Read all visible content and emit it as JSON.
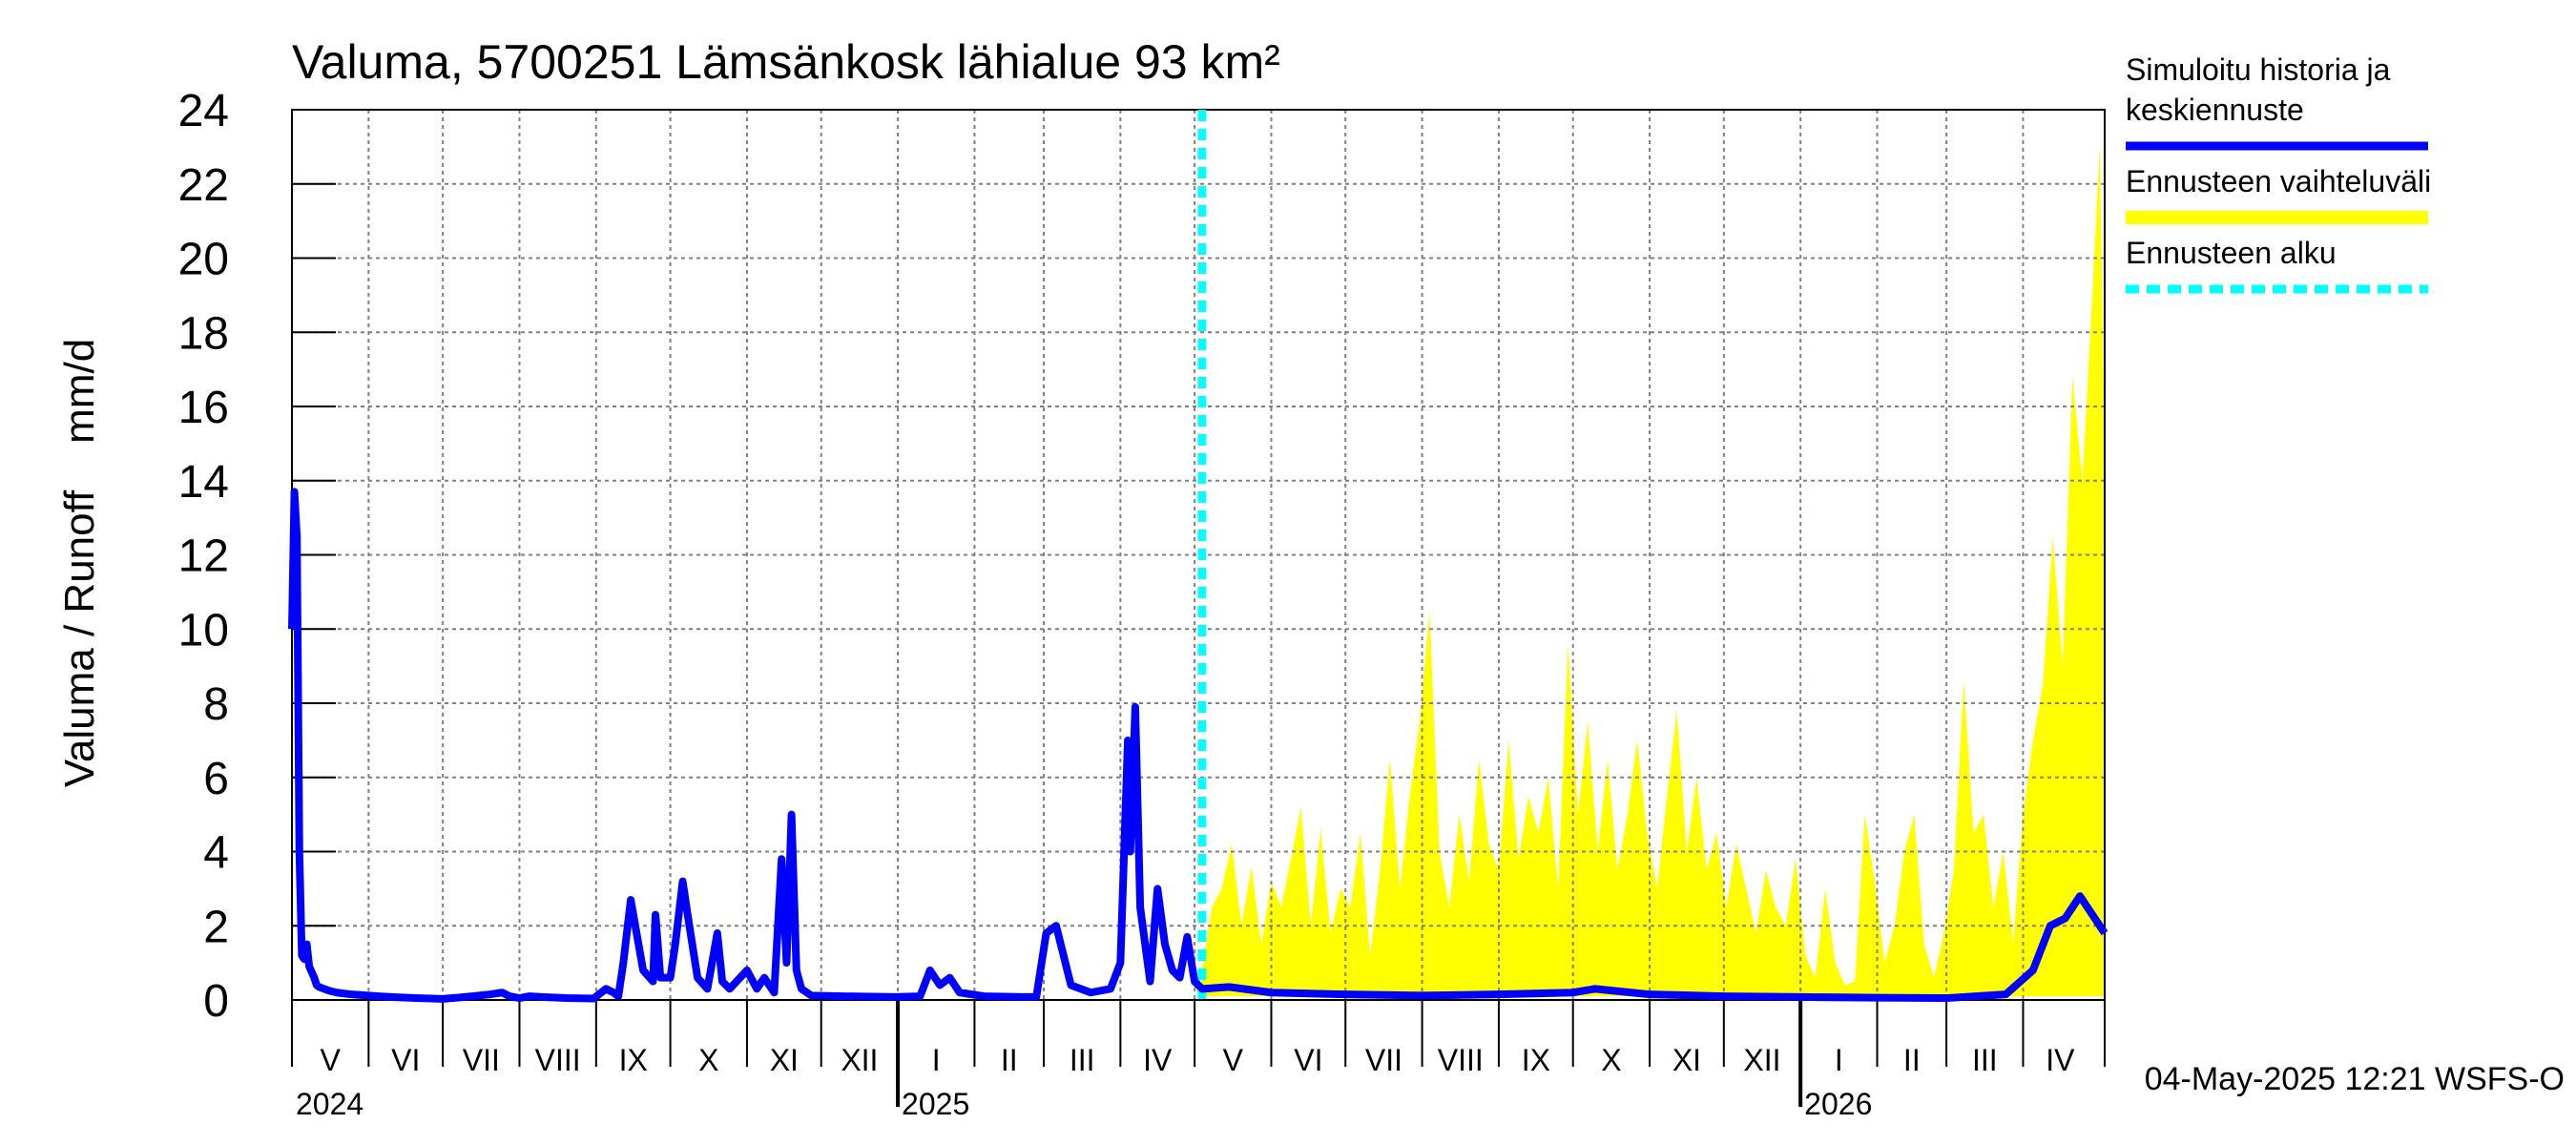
{
  "title": "Valuma, 5700251 Lämsänkosk lähialue 93 km²",
  "ylabel": "Valuma / Runoff    mm/d",
  "timestamp": "04-May-2025 12:21 WSFS-O",
  "colors": {
    "history": "#0000ff",
    "range": "#ffff00",
    "forecast_start": "#00ffff",
    "grid": "#808080"
  },
  "legend": {
    "items": [
      {
        "label_lines": [
          "Simuloitu historia ja",
          "keskiennuste"
        ],
        "style": "line",
        "color": "#0000ff"
      },
      {
        "label_lines": [
          "Ennusteen vaihteluväli"
        ],
        "style": "band",
        "color": "#ffff00"
      },
      {
        "label_lines": [
          "Ennusteen alku"
        ],
        "style": "dashed",
        "color": "#00ffff"
      }
    ]
  },
  "chart_data": {
    "type": "line",
    "x_type": "date",
    "xlim": [
      "2024-05-01",
      "2026-05-04"
    ],
    "ylim": [
      0,
      24
    ],
    "yticks": [
      0,
      2,
      4,
      6,
      8,
      10,
      12,
      14,
      16,
      18,
      20,
      22,
      24
    ],
    "grid": true,
    "legend_position": "right",
    "month_labels": [
      {
        "label": "V",
        "start": "2024-05-01",
        "end": "2024-06-01"
      },
      {
        "label": "VI",
        "start": "2024-06-01",
        "end": "2024-07-01"
      },
      {
        "label": "VII",
        "start": "2024-07-01",
        "end": "2024-08-01"
      },
      {
        "label": "VIII",
        "start": "2024-08-01",
        "end": "2024-09-01"
      },
      {
        "label": "IX",
        "start": "2024-09-01",
        "end": "2024-10-01"
      },
      {
        "label": "X",
        "start": "2024-10-01",
        "end": "2024-11-01"
      },
      {
        "label": "XI",
        "start": "2024-11-01",
        "end": "2024-12-01"
      },
      {
        "label": "XII",
        "start": "2024-12-01",
        "end": "2025-01-01"
      },
      {
        "label": "I",
        "start": "2025-01-01",
        "end": "2025-02-01"
      },
      {
        "label": "II",
        "start": "2025-02-01",
        "end": "2025-03-01"
      },
      {
        "label": "III",
        "start": "2025-03-01",
        "end": "2025-04-01"
      },
      {
        "label": "IV",
        "start": "2025-04-01",
        "end": "2025-05-01"
      },
      {
        "label": "V",
        "start": "2025-05-01",
        "end": "2025-06-01"
      },
      {
        "label": "VI",
        "start": "2025-06-01",
        "end": "2025-07-01"
      },
      {
        "label": "VII",
        "start": "2025-07-01",
        "end": "2025-08-01"
      },
      {
        "label": "VIII",
        "start": "2025-08-01",
        "end": "2025-09-01"
      },
      {
        "label": "IX",
        "start": "2025-09-01",
        "end": "2025-10-01"
      },
      {
        "label": "X",
        "start": "2025-10-01",
        "end": "2025-11-01"
      },
      {
        "label": "XI",
        "start": "2025-11-01",
        "end": "2025-12-01"
      },
      {
        "label": "XII",
        "start": "2025-12-01",
        "end": "2026-01-01"
      },
      {
        "label": "I",
        "start": "2026-01-01",
        "end": "2026-02-01"
      },
      {
        "label": "II",
        "start": "2026-02-01",
        "end": "2026-03-01"
      },
      {
        "label": "III",
        "start": "2026-03-01",
        "end": "2026-04-01"
      },
      {
        "label": "IV",
        "start": "2026-04-01",
        "end": "2026-05-01"
      }
    ],
    "year_labels": [
      {
        "label": "2024",
        "date": "2024-05-01"
      },
      {
        "label": "2025",
        "date": "2025-01-01"
      },
      {
        "label": "2026",
        "date": "2026-01-01"
      }
    ],
    "forecast_start": "2025-05-04",
    "series": [
      {
        "name": "Simuloitu historia ja keskiennuste",
        "x": [
          "2024-05-01",
          "2024-05-02",
          "2024-05-03",
          "2024-05-04",
          "2024-05-05",
          "2024-05-06",
          "2024-05-07",
          "2024-05-08",
          "2024-05-10",
          "2024-05-11",
          "2024-05-12",
          "2024-05-14",
          "2024-05-16",
          "2024-05-19",
          "2024-05-25",
          "2024-06-01",
          "2024-06-05",
          "2024-06-10",
          "2024-06-20",
          "2024-07-01",
          "2024-07-10",
          "2024-07-20",
          "2024-07-25",
          "2024-07-28",
          "2024-08-01",
          "2024-08-05",
          "2024-08-10",
          "2024-08-20",
          "2024-08-31",
          "2024-09-05",
          "2024-09-08",
          "2024-09-10",
          "2024-09-12",
          "2024-09-15",
          "2024-09-20",
          "2024-09-24",
          "2024-09-25",
          "2024-09-27",
          "2024-10-01",
          "2024-10-03",
          "2024-10-06",
          "2024-10-08",
          "2024-10-12",
          "2024-10-16",
          "2024-10-20",
          "2024-10-22",
          "2024-10-25",
          "2024-11-01",
          "2024-11-05",
          "2024-11-08",
          "2024-11-12",
          "2024-11-15",
          "2024-11-17",
          "2024-11-19",
          "2024-11-21",
          "2024-11-23",
          "2024-11-27",
          "2024-12-10",
          "2024-12-31",
          "2025-01-10",
          "2025-01-14",
          "2025-01-18",
          "2025-01-22",
          "2025-01-26",
          "2025-02-05",
          "2025-02-20",
          "2025-02-26",
          "2025-03-02",
          "2025-03-06",
          "2025-03-12",
          "2025-03-20",
          "2025-03-28",
          "2025-04-01",
          "2025-04-04",
          "2025-04-05",
          "2025-04-07",
          "2025-04-09",
          "2025-04-13",
          "2025-04-16",
          "2025-04-19",
          "2025-04-22",
          "2025-04-25",
          "2025-04-28",
          "2025-05-01",
          "2025-05-04",
          "2025-05-15",
          "2025-06-01",
          "2025-07-01",
          "2025-08-01",
          "2025-09-01",
          "2025-10-01",
          "2025-10-10",
          "2025-11-01",
          "2025-12-01",
          "2026-01-01",
          "2026-02-01",
          "2026-03-01",
          "2026-03-25",
          "2026-04-05",
          "2026-04-12",
          "2026-04-18",
          "2026-04-24",
          "2026-04-28",
          "2026-05-04"
        ],
        "y": [
          10.0,
          13.7,
          12.5,
          4.0,
          1.2,
          1.1,
          1.5,
          0.9,
          0.6,
          0.4,
          0.35,
          0.3,
          0.25,
          0.2,
          0.15,
          0.12,
          0.1,
          0.08,
          0.05,
          0.03,
          0.08,
          0.15,
          0.2,
          0.1,
          0.05,
          0.1,
          0.08,
          0.05,
          0.04,
          0.3,
          0.2,
          0.1,
          1.0,
          2.7,
          0.8,
          0.5,
          2.3,
          0.6,
          0.6,
          1.5,
          3.2,
          2.3,
          0.6,
          0.3,
          1.8,
          0.5,
          0.3,
          0.8,
          0.3,
          0.6,
          0.2,
          3.8,
          1.0,
          5.0,
          0.8,
          0.3,
          0.12,
          0.1,
          0.08,
          0.1,
          0.8,
          0.4,
          0.6,
          0.2,
          0.1,
          0.08,
          0.08,
          1.8,
          2.0,
          0.4,
          0.2,
          0.3,
          1.0,
          7.0,
          4.0,
          7.9,
          2.5,
          0.5,
          3.0,
          1.5,
          0.8,
          0.6,
          1.7,
          0.5,
          0.3,
          0.35,
          0.2,
          0.15,
          0.12,
          0.15,
          0.2,
          0.3,
          0.15,
          0.1,
          0.08,
          0.06,
          0.05,
          0.15,
          0.8,
          2.0,
          2.2,
          2.8,
          2.4,
          1.8
        ]
      },
      {
        "name": "Ennusteen vaihteluväli",
        "type": "area",
        "x": [
          "2025-05-04",
          "2025-05-08",
          "2025-05-12",
          "2025-05-16",
          "2025-05-20",
          "2025-05-24",
          "2025-05-28",
          "2025-06-01",
          "2025-06-05",
          "2025-06-09",
          "2025-06-13",
          "2025-06-17",
          "2025-06-21",
          "2025-06-25",
          "2025-06-29",
          "2025-07-03",
          "2025-07-07",
          "2025-07-11",
          "2025-07-15",
          "2025-07-19",
          "2025-07-23",
          "2025-07-27",
          "2025-07-31",
          "2025-08-04",
          "2025-08-08",
          "2025-08-12",
          "2025-08-16",
          "2025-08-20",
          "2025-08-24",
          "2025-08-28",
          "2025-09-01",
          "2025-09-05",
          "2025-09-09",
          "2025-09-13",
          "2025-09-17",
          "2025-09-21",
          "2025-09-25",
          "2025-09-29",
          "2025-10-03",
          "2025-10-07",
          "2025-10-11",
          "2025-10-15",
          "2025-10-19",
          "2025-10-23",
          "2025-10-27",
          "2025-10-31",
          "2025-11-04",
          "2025-11-08",
          "2025-11-12",
          "2025-11-16",
          "2025-11-20",
          "2025-11-24",
          "2025-11-28",
          "2025-12-02",
          "2025-12-06",
          "2025-12-10",
          "2025-12-14",
          "2025-12-18",
          "2025-12-22",
          "2025-12-26",
          "2025-12-30",
          "2026-01-03",
          "2026-01-07",
          "2026-01-11",
          "2026-01-15",
          "2026-01-19",
          "2026-01-23",
          "2026-01-27",
          "2026-01-31",
          "2026-02-04",
          "2026-02-08",
          "2026-02-12",
          "2026-02-16",
          "2026-02-20",
          "2026-02-24",
          "2026-02-28",
          "2026-03-04",
          "2026-03-08",
          "2026-03-12",
          "2026-03-16",
          "2026-03-20",
          "2026-03-24",
          "2026-03-28",
          "2026-04-01",
          "2026-04-05",
          "2026-04-09",
          "2026-04-13",
          "2026-04-17",
          "2026-04-21",
          "2026-04-25",
          "2026-04-29",
          "2026-05-02",
          "2026-05-04"
        ],
        "upper": [
          0.8,
          2.5,
          3.0,
          4.2,
          2.0,
          3.6,
          1.5,
          3.2,
          2.5,
          3.8,
          5.2,
          2.0,
          4.6,
          1.8,
          3.0,
          2.5,
          4.5,
          1.2,
          3.5,
          6.5,
          3.0,
          5.5,
          7.5,
          10.5,
          4.0,
          2.5,
          5.0,
          3.2,
          6.5,
          4.2,
          3.5,
          7.0,
          3.8,
          5.5,
          4.5,
          6.0,
          3.0,
          9.6,
          5.0,
          7.5,
          4.0,
          6.5,
          3.5,
          5.0,
          7.0,
          4.5,
          3.0,
          5.5,
          7.8,
          4.0,
          6.0,
          3.5,
          4.5,
          2.5,
          4.2,
          3.0,
          1.8,
          3.5,
          2.5,
          2.0,
          3.8,
          1.2,
          0.6,
          3.0,
          1.0,
          0.4,
          0.5,
          5.0,
          3.2,
          1.0,
          2.0,
          4.0,
          5.0,
          1.5,
          0.6,
          1.8,
          3.5,
          8.6,
          4.5,
          5.0,
          2.5,
          4.0,
          1.5,
          5.0,
          7.0,
          8.5,
          12.5,
          9.0,
          16.8,
          14.0,
          19.0,
          23.0,
          15.0
        ],
        "lower": [
          0.1,
          0.1,
          0.1,
          0.1,
          0.1,
          0.1,
          0.1,
          0.1,
          0.1,
          0.1,
          0.1,
          0.1,
          0.1,
          0.1,
          0.1,
          0.1,
          0.1,
          0.1,
          0.1,
          0.1,
          0.1,
          0.1,
          0.1,
          0.1,
          0.1,
          0.1,
          0.1,
          0.1,
          0.1,
          0.1,
          0.1,
          0.1,
          0.1,
          0.1,
          0.1,
          0.1,
          0.1,
          0.1,
          0.1,
          0.1,
          0.1,
          0.1,
          0.1,
          0.1,
          0.1,
          0.1,
          0.1,
          0.1,
          0.1,
          0.1,
          0.1,
          0.1,
          0.1,
          0.1,
          0.1,
          0.1,
          0.1,
          0.1,
          0.1,
          0.1,
          0.1,
          0.1,
          0.1,
          0.1,
          0.1,
          0.1,
          0.1,
          0.1,
          0.1,
          0.1,
          0.1,
          0.1,
          0.1,
          0.1,
          0.1,
          0.1,
          0.1,
          0.1,
          0.1,
          0.1,
          0.1,
          0.1,
          0.1,
          0.1,
          0.1,
          0.1,
          0.1,
          0.1,
          0.1,
          0.1,
          0.1,
          0.1,
          0.1
        ]
      }
    ]
  }
}
